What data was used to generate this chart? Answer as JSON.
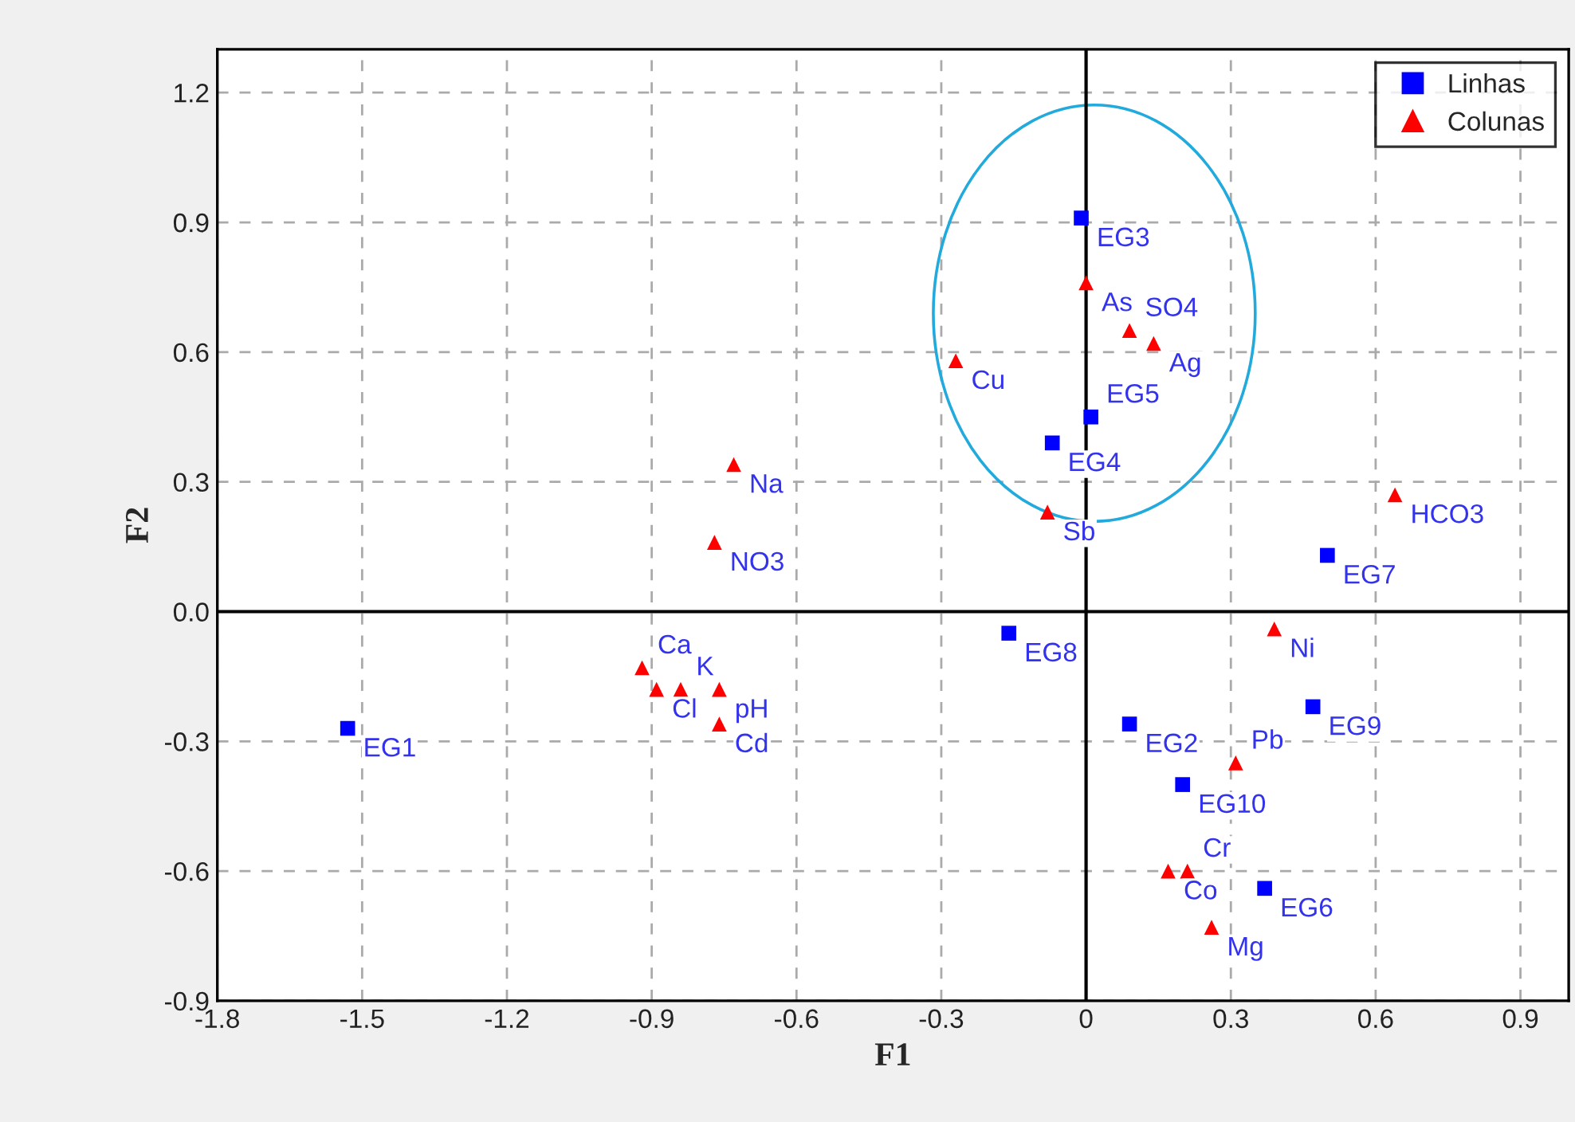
{
  "chart_data": {
    "type": "scatter",
    "xlabel": "F1",
    "ylabel": "F2",
    "xlim": [
      -1.8,
      1.0
    ],
    "ylim": [
      -0.9,
      1.3
    ],
    "xticks": [
      -1.8,
      -1.5,
      -1.2,
      -0.9,
      -0.6,
      -0.3,
      0,
      0.3,
      0.6,
      0.9
    ],
    "yticks": [
      -0.9,
      -0.6,
      -0.3,
      {
        "value": 0,
        "label": "0.0"
      },
      0.3,
      0.6,
      0.9,
      1.2
    ],
    "grid": true,
    "legend": "top right",
    "series": [
      {
        "name": "Linhas",
        "color": "#0000ff",
        "marker": "square",
        "x": [
          -1.53,
          0.09,
          -0.01,
          -0.07,
          0.01,
          0.37,
          0.5,
          -0.16,
          0.47,
          0.2
        ],
        "values": [
          -0.27,
          -0.26,
          0.91,
          0.39,
          0.45,
          -0.64,
          0.13,
          -0.05,
          -0.22,
          -0.4
        ],
        "value_labels": [
          "EG1",
          "EG2",
          "EG3",
          "EG4",
          "EG5",
          "EG6",
          "EG7",
          "EG8",
          "EG9",
          "EG10"
        ]
      },
      {
        "name": "Colunas",
        "color": "#ff0000",
        "marker": "triangle",
        "x": [
          -0.92,
          -0.89,
          -0.84,
          -0.76,
          -0.76,
          -0.73,
          -0.77,
          -0.27,
          0.0,
          0.09,
          0.14,
          -0.08,
          0.64,
          0.39,
          0.31,
          0.17,
          0.21,
          0.26
        ],
        "values": [
          -0.13,
          -0.18,
          -0.18,
          -0.18,
          -0.26,
          0.34,
          0.16,
          0.58,
          0.76,
          0.65,
          0.62,
          0.23,
          0.27,
          -0.04,
          -0.35,
          -0.6,
          -0.6,
          -0.73
        ],
        "value_labels": [
          "Ca",
          "Cl",
          "K",
          "pH",
          "Cd",
          "Na",
          "NO3",
          "Cu",
          "As",
          "SO4",
          "Ag",
          "Sb",
          "HCO3",
          "Ni",
          "Pb",
          "Co",
          "Cr",
          "Mg"
        ]
      }
    ]
  }
}
